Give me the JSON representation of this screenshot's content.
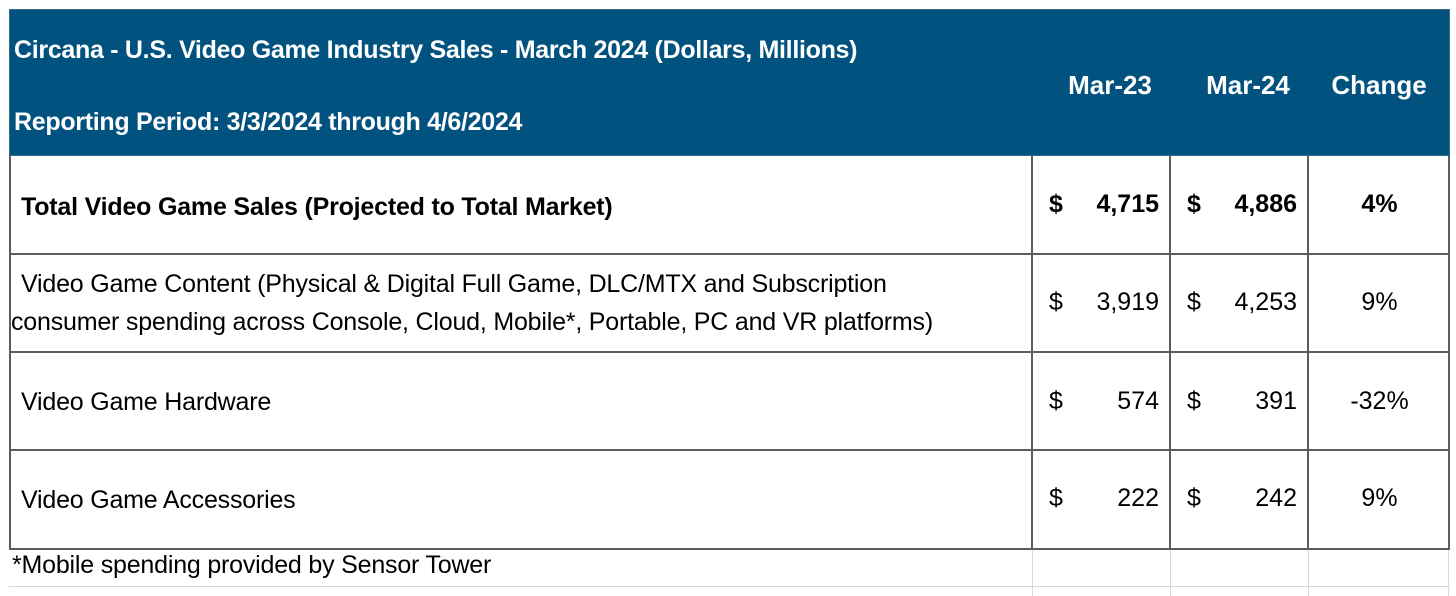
{
  "chart_data": {
    "type": "table",
    "title": "Circana - U.S. Video Game Industry Sales - March 2024 (Dollars, Millions)",
    "subtitle": "Reporting Period: 3/3/2024 through 4/6/2024",
    "columns": [
      "Mar-23",
      "Mar-24",
      "Change"
    ],
    "rows": [
      {
        "label": "Total Video Game Sales (Projected to Total Market)",
        "currency": "$",
        "mar23": "4,715",
        "mar24": "4,886",
        "change": "4%",
        "bold": true
      },
      {
        "label_line1": "Video Game Content (Physical & Digital Full Game, DLC/MTX and Subscription",
        "label_line2": "consumer spending across Console, Cloud, Mobile*, Portable, PC and VR platforms)",
        "currency": "$",
        "mar23": "3,919",
        "mar24": "4,253",
        "change": "9%",
        "bold": false
      },
      {
        "label": "Video Game Hardware",
        "currency": "$",
        "mar23": "574",
        "mar24": "391",
        "change": "-32%",
        "bold": false
      },
      {
        "label": "Video Game Accessories",
        "currency": "$",
        "mar23": "222",
        "mar24": "242",
        "change": "9%",
        "bold": false
      }
    ],
    "footnote": "*Mobile spending provided by Sensor Tower",
    "colors": {
      "header_bg": "#02527f",
      "header_text": "#ffffff",
      "grid": "#5c5c5c"
    }
  }
}
